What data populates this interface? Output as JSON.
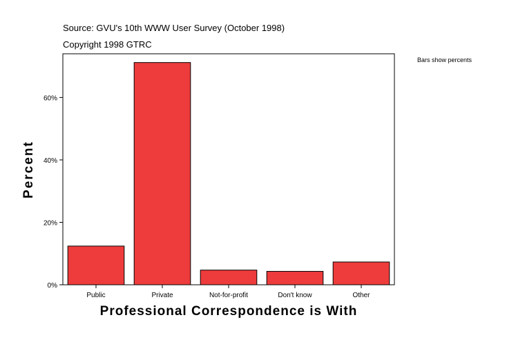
{
  "header": {
    "source": "Source: GVU's 10th WWW User Survey (October 1998)",
    "copyright": "Copyright 1998 GTRC"
  },
  "note": "Bars show percents",
  "colors": {
    "bar": "#ee3c3c",
    "bar_stroke": "#000000",
    "axis": "#000000",
    "background": "#ffffff"
  },
  "chart_data": {
    "type": "bar",
    "categories": [
      "Public",
      "Private",
      "Not-for-profit",
      "Don't know",
      "Other"
    ],
    "values": [
      12.4,
      71.2,
      4.7,
      4.3,
      7.3
    ],
    "xlabel": "Professional Correspondence is With",
    "ylabel": "Percent",
    "ylim": [
      0,
      74
    ],
    "yticks": [
      0,
      20,
      40,
      60
    ],
    "ytick_labels": [
      "0%",
      "20%",
      "40%",
      "60%"
    ],
    "grid": false
  }
}
